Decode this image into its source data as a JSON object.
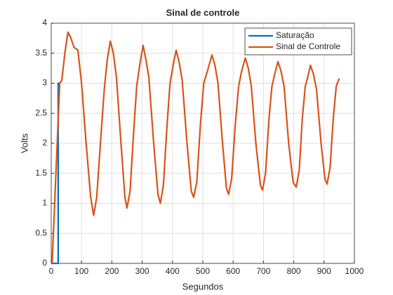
{
  "chart_data": {
    "type": "line",
    "title": "Sinal de controle",
    "xlabel": "Segundos",
    "ylabel": "Volts",
    "xlim": [
      0,
      1000
    ],
    "xticks": [
      0,
      100,
      200,
      300,
      400,
      500,
      600,
      700,
      800,
      900,
      1000
    ],
    "ylim": [
      0,
      4
    ],
    "yticks": [
      0,
      0.5,
      1,
      1.5,
      2,
      2.5,
      3,
      3.5,
      4
    ],
    "grid": true,
    "legend": "northeast",
    "series": [
      {
        "name": "Saturação",
        "color": "#0072bd",
        "x": [
          0,
          23,
          23,
          30
        ],
        "values": [
          0,
          0,
          3,
          3
        ]
      },
      {
        "name": "Sinal de Controle",
        "color": "#d95319",
        "x": [
          0,
          3,
          28,
          35,
          45,
          55,
          65,
          75,
          88,
          100,
          115,
          130,
          140,
          150,
          165,
          175,
          185,
          195,
          205,
          215,
          230,
          243,
          250,
          260,
          272,
          282,
          292,
          303,
          312,
          322,
          338,
          352,
          360,
          370,
          382,
          392,
          402,
          412,
          422,
          432,
          448,
          462,
          470,
          480,
          492,
          503,
          515,
          530,
          540,
          550,
          565,
          578,
          585,
          595,
          607,
          618,
          628,
          640,
          650,
          660,
          675,
          690,
          697,
          707,
          718,
          728,
          737,
          748,
          758,
          768,
          783,
          798,
          808,
          818,
          828,
          838,
          846,
          855,
          865,
          875,
          890,
          903,
          910,
          920,
          930,
          940,
          950
        ],
        "values": [
          0,
          0,
          3,
          3.05,
          3.5,
          3.85,
          3.75,
          3.6,
          3.55,
          3.0,
          2.0,
          1.1,
          0.8,
          1.1,
          2.2,
          2.9,
          3.4,
          3.7,
          3.5,
          3.1,
          2.0,
          1.1,
          0.92,
          1.2,
          2.2,
          2.95,
          3.3,
          3.63,
          3.4,
          3.1,
          2.0,
          1.15,
          1.0,
          1.3,
          2.3,
          3.0,
          3.3,
          3.55,
          3.35,
          3.05,
          2.0,
          1.2,
          1.1,
          1.35,
          2.3,
          3.0,
          3.2,
          3.47,
          3.3,
          3.0,
          2.0,
          1.25,
          1.15,
          1.4,
          2.3,
          2.95,
          3.2,
          3.42,
          3.25,
          2.95,
          2.0,
          1.3,
          1.22,
          1.5,
          2.4,
          2.95,
          3.15,
          3.36,
          3.2,
          2.95,
          2.0,
          1.35,
          1.27,
          1.55,
          2.4,
          2.95,
          3.1,
          3.3,
          3.15,
          2.9,
          2.0,
          1.4,
          1.32,
          1.6,
          2.4,
          2.95,
          3.08
        ]
      }
    ]
  }
}
